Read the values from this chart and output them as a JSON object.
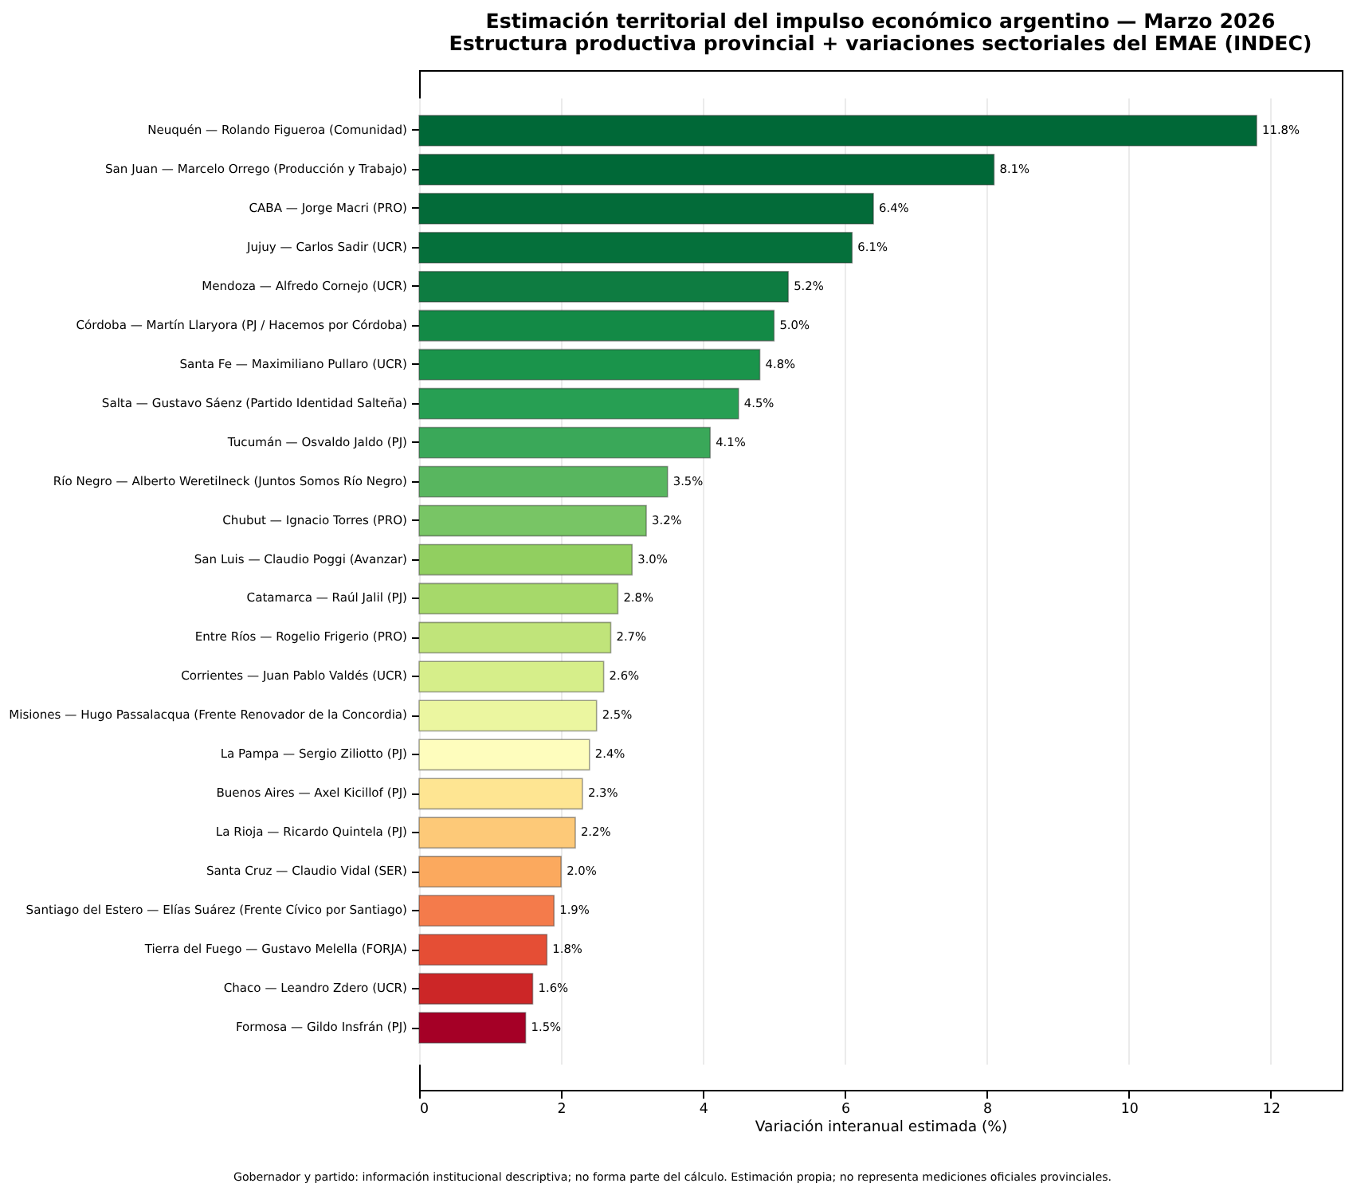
{
  "chart_data": {
    "type": "bar",
    "orientation": "horizontal",
    "title": "Estimación territorial del impulso económico argentino — Marzo 2026\nEstructura productiva provincial + variaciones sectoriales del EMAE (INDEC)",
    "xlabel": "Variación interanual estimada (%)",
    "categories": [
      "Neuquén — Rolando Figueroa (Comunidad)",
      "San Juan — Marcelo Orrego (Producción y Trabajo)",
      "CABA — Jorge Macri (PRO)",
      "Jujuy — Carlos Sadir (UCR)",
      "Mendoza — Alfredo Cornejo (UCR)",
      "Córdoba — Martín Llaryora (PJ / Hacemos por Córdoba)",
      "Santa Fe — Maximiliano Pullaro (UCR)",
      "Salta — Gustavo Sáenz (Partido Identidad Salteña)",
      "Tucumán — Osvaldo Jaldo (PJ)",
      "Río Negro — Alberto Weretilneck (Juntos Somos Río Negro)",
      "Chubut — Ignacio Torres (PRO)",
      "San Luis — Claudio Poggi (Avanzar)",
      "Catamarca — Raúl Jalil (PJ)",
      "Entre Ríos — Rogelio Frigerio (PRO)",
      "Corrientes — Juan Pablo Valdés (UCR)",
      "Misiones — Hugo Passalacqua (Frente Renovador de la Concordia)",
      "La Pampa — Sergio Ziliotto (PJ)",
      "Buenos Aires — Axel Kicillof (PJ)",
      "La Rioja — Ricardo Quintela (PJ)",
      "Santa Cruz — Claudio Vidal (SER)",
      "Santiago del Estero — Elías Suárez (Frente Cívico por Santiago)",
      "Tierra del Fuego — Gustavo Melella (FORJA)",
      "Chaco — Leandro Zdero (UCR)",
      "Formosa — Gildo Insfrán (PJ)"
    ],
    "values": [
      11.8,
      8.1,
      6.4,
      6.1,
      5.2,
      5.0,
      4.8,
      4.5,
      4.1,
      3.5,
      3.2,
      3.0,
      2.8,
      2.7,
      2.6,
      2.5,
      2.4,
      2.3,
      2.2,
      2.0,
      1.9,
      1.8,
      1.6,
      1.5
    ],
    "value_labels": [
      "11.8%",
      "8.1%",
      "6.4%",
      "6.1%",
      "5.2%",
      "5.0%",
      "4.8%",
      "4.5%",
      "4.1%",
      "3.5%",
      "3.2%",
      "3.0%",
      "2.8%",
      "2.7%",
      "2.6%",
      "2.5%",
      "2.4%",
      "2.3%",
      "2.2%",
      "2.0%",
      "1.9%",
      "1.8%",
      "1.6%",
      "1.5%"
    ],
    "colors": [
      "#006837",
      "#006837",
      "#036b39",
      "#05703b",
      "#0e7c41",
      "#138a46",
      "#1a944b",
      "#279f53",
      "#3aa859",
      "#58b65f",
      "#78c565",
      "#91cf60",
      "#a6d96a",
      "#c0e47a",
      "#d6ee8a",
      "#ebf6a0",
      "#fefdbd",
      "#fee592",
      "#fdc978",
      "#fba95e",
      "#f47b4b",
      "#e54e35",
      "#cc2627",
      "#a50026"
    ],
    "xlim": [
      0,
      13
    ],
    "xticks": [
      0,
      2,
      4,
      6,
      8,
      10,
      12
    ],
    "grid": "x",
    "annotations": [
      "Gobernador y partido: información institucional descriptiva; no forma parte del cálculo. Estimación propia; no representa mediciones oficiales provinciales."
    ]
  }
}
